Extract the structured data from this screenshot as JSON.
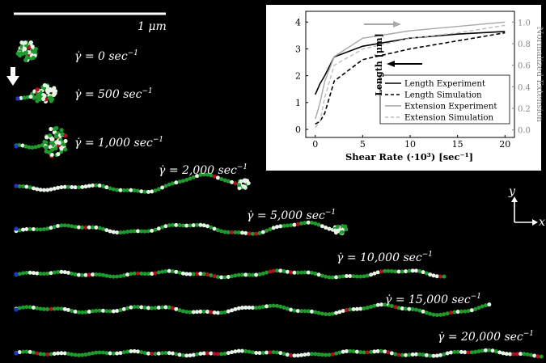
{
  "scale_bar": {
    "label": "1 μm"
  },
  "axes_indicator": {
    "y": "y",
    "x": "x"
  },
  "rates": [
    {
      "label": "0",
      "unit": "sec",
      "exp": "−1"
    },
    {
      "label": "500",
      "unit": "sec",
      "exp": "−1"
    },
    {
      "label": "1,000",
      "unit": "sec",
      "exp": "−1"
    },
    {
      "label": "2,000",
      "unit": "sec",
      "exp": "−1"
    },
    {
      "label": "5,000",
      "unit": "sec",
      "exp": "−1"
    },
    {
      "label": "10,000",
      "unit": "sec",
      "exp": "−1"
    },
    {
      "label": "15,000",
      "unit": "sec",
      "exp": "−1"
    },
    {
      "label": "20,000",
      "unit": "sec",
      "exp": "−1"
    }
  ],
  "colors": {
    "background": "#000000",
    "bead_green": "#1f9a2c",
    "bead_white": "#e6f5e6",
    "bead_red": "#b01020",
    "bead_blue": "#2233cc",
    "inset_bg": "#ffffff"
  },
  "chart_data": {
    "type": "line",
    "xlabel": "Shear Rate (·10³) [sec⁻¹]",
    "ylabel_left": "Length [μm]",
    "ylabel_right": "Normalized Extension",
    "xlim": [
      -1,
      21
    ],
    "ylim_left": [
      -0.3,
      4.4
    ],
    "ylim_right": [
      -0.07,
      1.1
    ],
    "xticks": [
      "0",
      "5",
      "10",
      "15",
      "20"
    ],
    "yticks_left": [
      "0",
      "1",
      "2",
      "3",
      "4"
    ],
    "yticks_right": [
      "0.0",
      "0.2",
      "0.4",
      "0.6",
      "0.8",
      "1.0"
    ],
    "legend": "lower-right",
    "series": [
      {
        "name": "Length Experiment",
        "axis": "left",
        "color": "#000000",
        "dash": "solid",
        "x": [
          0,
          0.5,
          1,
          2,
          5,
          10,
          15,
          20
        ],
        "y": [
          1.3,
          1.7,
          2.0,
          2.7,
          3.1,
          3.4,
          3.55,
          3.65
        ]
      },
      {
        "name": "Length Simulation",
        "axis": "left",
        "color": "#000000",
        "dash": "dashed",
        "x": [
          0,
          0.5,
          1,
          2,
          5,
          10,
          15,
          20
        ],
        "y": [
          0.2,
          0.3,
          0.6,
          1.8,
          2.6,
          3.0,
          3.3,
          3.6
        ]
      },
      {
        "name": "Extension Experiment",
        "axis": "right",
        "color": "#a8a8a8",
        "dash": "solid",
        "x": [
          0,
          0.5,
          1,
          2,
          5,
          10,
          15,
          20
        ],
        "y": [
          0.1,
          0.25,
          0.45,
          0.68,
          0.85,
          0.92,
          0.96,
          1.0
        ]
      },
      {
        "name": "Extension Simulation",
        "axis": "right",
        "color": "#bcbcbc",
        "dash": "dashed",
        "x": [
          0,
          0.5,
          1,
          2,
          5,
          10,
          15,
          20
        ],
        "y": [
          0.02,
          0.08,
          0.3,
          0.6,
          0.75,
          0.85,
          0.9,
          0.97
        ]
      }
    ],
    "annotations": [
      {
        "type": "arrow",
        "direction": "right",
        "color": "#a8a8a8",
        "target": "right"
      },
      {
        "type": "arrow",
        "direction": "left",
        "color": "#000000",
        "target": "left"
      }
    ]
  }
}
